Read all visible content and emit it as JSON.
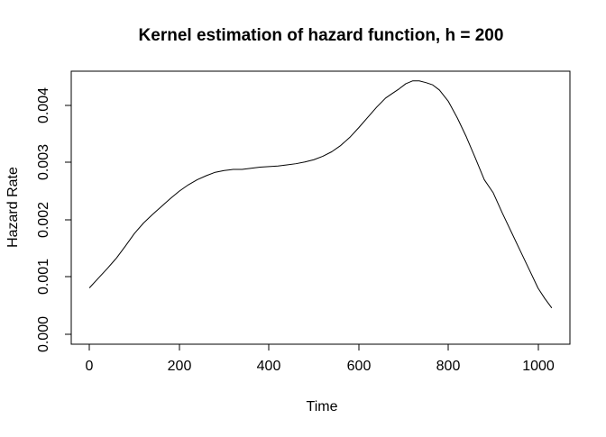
{
  "chart_data": {
    "type": "line",
    "title": "Kernel estimation of hazard function, h = 200",
    "xlabel": "Time",
    "ylabel": "Hazard Rate",
    "x_ticks": [
      0,
      200,
      400,
      600,
      800,
      1000
    ],
    "x_tick_labels": [
      "0",
      "200",
      "400",
      "600",
      "800",
      "1000"
    ],
    "y_ticks": [
      0.0,
      0.001,
      0.002,
      0.003,
      0.004
    ],
    "y_tick_labels": [
      "0.000",
      "0.001",
      "0.002",
      "0.003",
      "0.004"
    ],
    "xlim": [
      -41,
      1071
    ],
    "ylim": [
      -0.00018,
      0.0046
    ],
    "grid": false,
    "legend": null,
    "line_color": "#000000",
    "series": [
      {
        "name": "kernel-hazard-estimate",
        "x": [
          0,
          20,
          40,
          60,
          80,
          100,
          120,
          140,
          160,
          180,
          200,
          220,
          240,
          260,
          280,
          300,
          320,
          340,
          360,
          380,
          400,
          420,
          440,
          460,
          480,
          500,
          520,
          540,
          560,
          580,
          600,
          620,
          640,
          660,
          675,
          690,
          705,
          720,
          735,
          750,
          765,
          780,
          800,
          820,
          840,
          860,
          880,
          900,
          920,
          940,
          960,
          980,
          1000,
          1015,
          1030
        ],
        "y": [
          0.00081,
          0.00098,
          0.00115,
          0.00133,
          0.00154,
          0.00176,
          0.00194,
          0.00209,
          0.00223,
          0.00237,
          0.0025,
          0.00261,
          0.0027,
          0.00277,
          0.00283,
          0.00286,
          0.00288,
          0.00288,
          0.0029,
          0.00292,
          0.00293,
          0.00294,
          0.00296,
          0.00298,
          0.00301,
          0.00305,
          0.00311,
          0.00319,
          0.0033,
          0.00344,
          0.00361,
          0.00379,
          0.00397,
          0.00413,
          0.00421,
          0.00429,
          0.00438,
          0.00443,
          0.00443,
          0.0044,
          0.00436,
          0.00427,
          0.00407,
          0.00378,
          0.00345,
          0.00308,
          0.0027,
          0.00247,
          0.00212,
          0.00179,
          0.00146,
          0.00113,
          0.0008,
          0.00062,
          0.00046
        ]
      }
    ]
  }
}
